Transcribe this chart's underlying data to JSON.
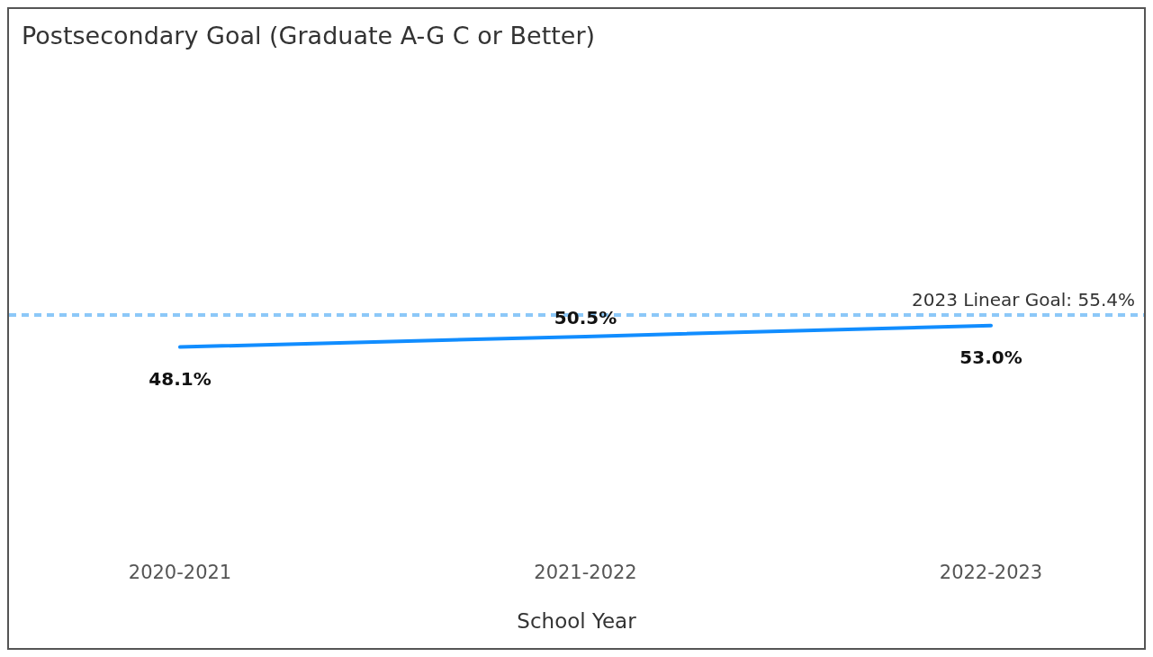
{
  "chart_data": {
    "type": "line",
    "title": "Postsecondary Goal (Graduate A-G C or Better)",
    "xlabel": "School Year",
    "categories": [
      "2020-2021",
      "2021-2022",
      "2022-2023"
    ],
    "series": [
      {
        "color": "#118dff",
        "values": [
          48.1,
          50.5,
          53.0
        ],
        "value_labels": [
          "48.1%",
          "50.5%",
          "53.0%"
        ]
      }
    ],
    "ref_lines": [
      {
        "axis": "y",
        "value": 55.4,
        "label": "2023 Linear Goal: 55.4%",
        "color": "#8cc8f8",
        "line_style": "dashed"
      }
    ],
    "grid": false,
    "legend": false,
    "marker": "none",
    "line_style": "solid",
    "tick_labels": "x"
  }
}
